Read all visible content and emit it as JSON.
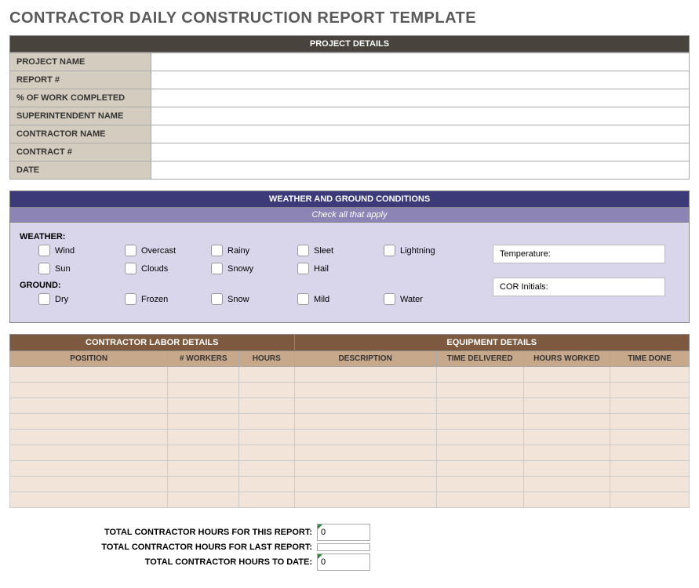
{
  "title": "CONTRACTOR DAILY CONSTRUCTION REPORT TEMPLATE",
  "project": {
    "header": "PROJECT DETAILS",
    "rows": [
      {
        "label": "PROJECT NAME",
        "value": ""
      },
      {
        "label": "REPORT #",
        "value": ""
      },
      {
        "label": "% OF WORK COMPLETED",
        "value": ""
      },
      {
        "label": "SUPERINTENDENT NAME",
        "value": ""
      },
      {
        "label": "CONTRACTOR NAME",
        "value": ""
      },
      {
        "label": "CONTRACT #",
        "value": ""
      },
      {
        "label": "DATE",
        "value": ""
      }
    ]
  },
  "weather": {
    "header": "WEATHER AND GROUND CONDITIONS",
    "subheader": "Check all that apply",
    "weather_label": "WEATHER:",
    "ground_label": "GROUND:",
    "weather_row1": [
      "Wind",
      "Overcast",
      "Rainy",
      "Sleet",
      "Lightning"
    ],
    "weather_row2": [
      "Sun",
      "Clouds",
      "Snowy",
      "Hail"
    ],
    "ground_row": [
      "Dry",
      "Frozen",
      "Snow",
      "Mild",
      "Water"
    ],
    "temp_label": "Temperature:",
    "cor_label": "COR Initials:"
  },
  "labor": {
    "left_header": "CONTRACTOR LABOR DETAILS",
    "right_header": "EQUIPMENT DETAILS",
    "columns": [
      "POSITION",
      "# WORKERS",
      "HOURS",
      "DESCRIPTION",
      "TIME DELIVERED",
      "HOURS WORKED",
      "TIME DONE"
    ],
    "row_count": 9,
    "col_widths": [
      "200px",
      "90px",
      "70px",
      "180px",
      "110px",
      "110px",
      "100px"
    ]
  },
  "totals": {
    "rows": [
      {
        "label": "TOTAL CONTRACTOR HOURS FOR THIS REPORT:",
        "value": "0",
        "marked": true
      },
      {
        "label": "TOTAL CONTRACTOR HOURS FOR LAST REPORT:",
        "value": "",
        "marked": false
      },
      {
        "label": "TOTAL CONTRACTOR HOURS TO DATE:",
        "value": "0",
        "marked": true
      }
    ]
  },
  "colors": {
    "title_text": "#5a5a5a",
    "project_header_bg": "#48433d",
    "label_cell_bg": "#d4cdbf",
    "weather_header_bg": "#3d3a7a",
    "weather_sub_bg": "#8b84b5",
    "weather_body_bg": "#d9d5ea",
    "labor_header_bg": "#7d5a3f",
    "sub_header_bg": "#c8a88a",
    "data_row_bg": "#f2e4d8",
    "marker_color": "#2a8a3a"
  }
}
